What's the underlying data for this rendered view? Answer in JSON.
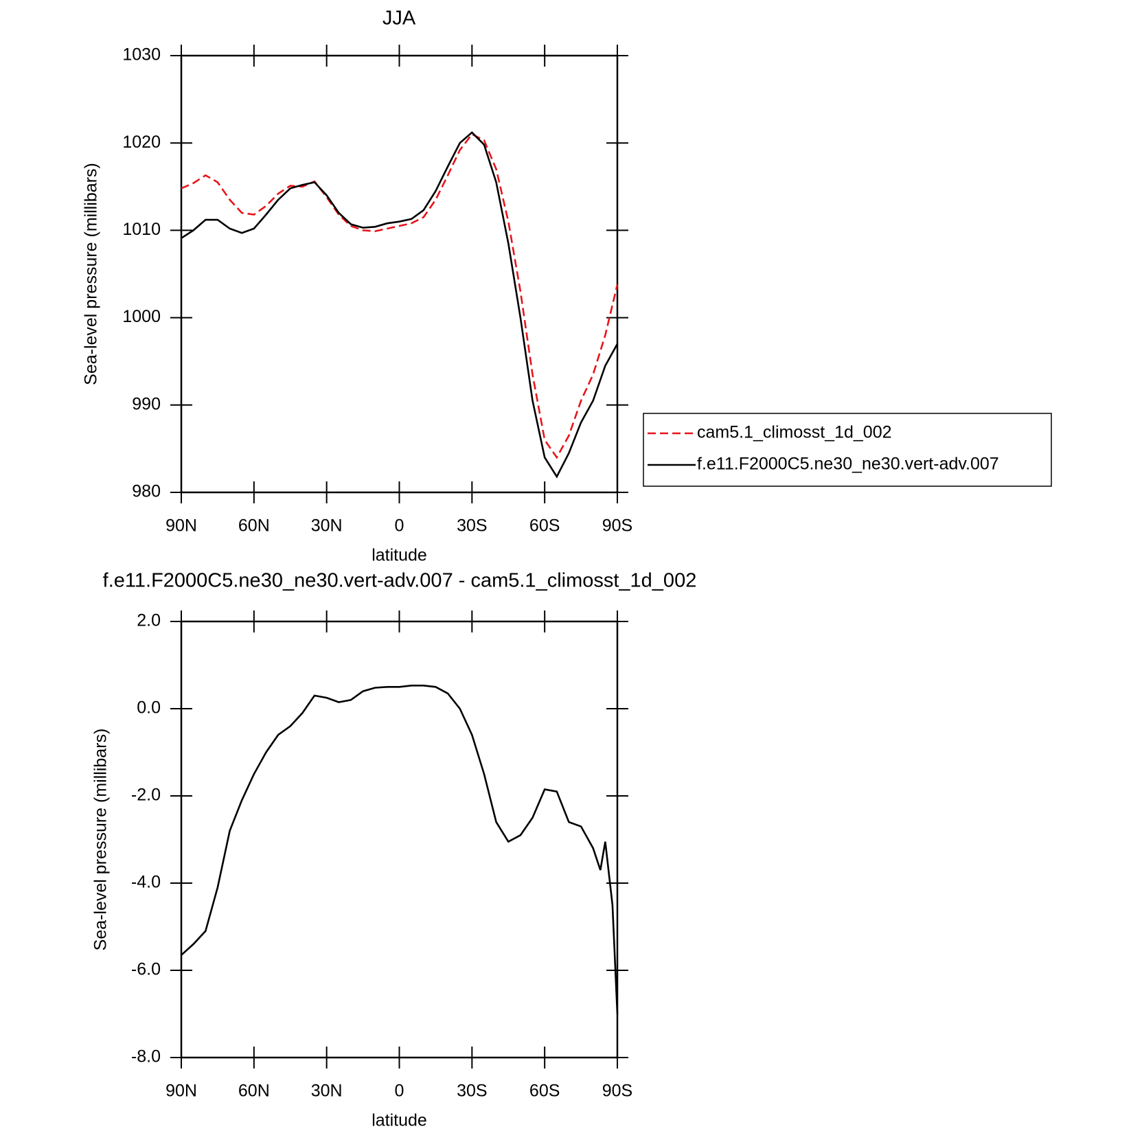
{
  "chart_data": [
    {
      "type": "line",
      "title": "JJA",
      "x_label": "latitude",
      "y_label": "Sea-level pressure (millibars)",
      "x": [
        90,
        85,
        80,
        75,
        70,
        65,
        60,
        55,
        50,
        45,
        40,
        35,
        30,
        25,
        20,
        15,
        10,
        5,
        0,
        -5,
        -10,
        -15,
        -20,
        -25,
        -30,
        -35,
        -40,
        -45,
        -50,
        -55,
        -60,
        -65,
        -70,
        -75,
        -80,
        -85,
        -90
      ],
      "xlim": [
        90,
        -90
      ],
      "xticks": [
        {
          "value": 90,
          "label": "90N"
        },
        {
          "value": 60,
          "label": "60N"
        },
        {
          "value": 30,
          "label": "30N"
        },
        0,
        {
          "value": -30,
          "label": "30S"
        },
        {
          "value": -60,
          "label": "60S"
        },
        {
          "value": -90,
          "label": "90S"
        }
      ],
      "ylim": [
        980,
        1030
      ],
      "yticks": [
        980,
        990,
        1000,
        1010,
        1020,
        1030
      ],
      "legend": "right",
      "series": [
        {
          "name": "cam5.1_climosst_1d_002",
          "color": "#e8141a",
          "line_style": "dashed",
          "values": [
            1014.8,
            1015.4,
            1016.3,
            1015.5,
            1013.5,
            1012.0,
            1011.8,
            1012.8,
            1014.2,
            1015.1,
            1015.0,
            1015.6,
            1013.8,
            1011.8,
            1010.5,
            1010.0,
            1009.9,
            1010.2,
            1010.5,
            1010.8,
            1011.5,
            1013.5,
            1016.3,
            1019.2,
            1021.0,
            1020.3,
            1017.0,
            1011.0,
            1003.0,
            993.5,
            986.0,
            984.0,
            986.5,
            990.5,
            993.5,
            998.0,
            1003.8
          ]
        },
        {
          "name": "f.e11.F2000C5.ne30_ne30.vert-adv.007",
          "color": "#000000",
          "line_style": "solid",
          "values": [
            1009.1,
            1010.0,
            1011.2,
            1011.2,
            1010.2,
            1009.7,
            1010.2,
            1011.8,
            1013.5,
            1014.8,
            1015.2,
            1015.5,
            1014.0,
            1012.0,
            1010.7,
            1010.3,
            1010.4,
            1010.8,
            1011.0,
            1011.3,
            1012.3,
            1014.5,
            1017.3,
            1020.0,
            1021.2,
            1019.8,
            1015.5,
            1008.5,
            1000.0,
            990.5,
            984.0,
            981.8,
            984.5,
            988.0,
            990.5,
            994.5,
            997.0
          ]
        }
      ]
    },
    {
      "type": "line",
      "title": "f.e11.F2000C5.ne30_ne30.vert-adv.007 - cam5.1_climosst_1d_002",
      "x_label": "latitude",
      "y_label": "Sea-level pressure (millibars)",
      "x": [
        90,
        85,
        80,
        75,
        70,
        65,
        60,
        55,
        50,
        45,
        40,
        35,
        30,
        25,
        20,
        15,
        10,
        5,
        0,
        -5,
        -10,
        -15,
        -20,
        -25,
        -30,
        -35,
        -40,
        -45,
        -50,
        -55,
        -60,
        -65,
        -70,
        -75,
        -80,
        -83,
        -85,
        -88,
        -90
      ],
      "xlim": [
        90,
        -90
      ],
      "xticks": [
        {
          "value": 90,
          "label": "90N"
        },
        {
          "value": 60,
          "label": "60N"
        },
        {
          "value": 30,
          "label": "30N"
        },
        0,
        {
          "value": -30,
          "label": "30S"
        },
        {
          "value": -60,
          "label": "60S"
        },
        {
          "value": -90,
          "label": "90S"
        }
      ],
      "ylim": [
        -8,
        2
      ],
      "yticks": [
        {
          "value": -8,
          "label": "-8.0"
        },
        {
          "value": -6,
          "label": "-6.0"
        },
        {
          "value": -4,
          "label": "-4.0"
        },
        {
          "value": -2,
          "label": "-2.0"
        },
        {
          "value": 0,
          "label": "0.0"
        },
        {
          "value": 2,
          "label": "2.0"
        }
      ],
      "series": [
        {
          "color": "#000000",
          "line_style": "solid",
          "values": [
            -5.65,
            -5.4,
            -5.1,
            -4.1,
            -2.8,
            -2.1,
            -1.5,
            -1.0,
            -0.6,
            -0.4,
            -0.1,
            0.3,
            0.25,
            0.15,
            0.2,
            0.4,
            0.48,
            0.5,
            0.5,
            0.53,
            0.53,
            0.5,
            0.35,
            0.0,
            -0.6,
            -1.5,
            -2.6,
            -3.05,
            -2.9,
            -2.5,
            -1.85,
            -1.9,
            -2.6,
            -2.7,
            -3.2,
            -3.7,
            -3.05,
            -4.5,
            -7.0
          ]
        }
      ]
    }
  ]
}
